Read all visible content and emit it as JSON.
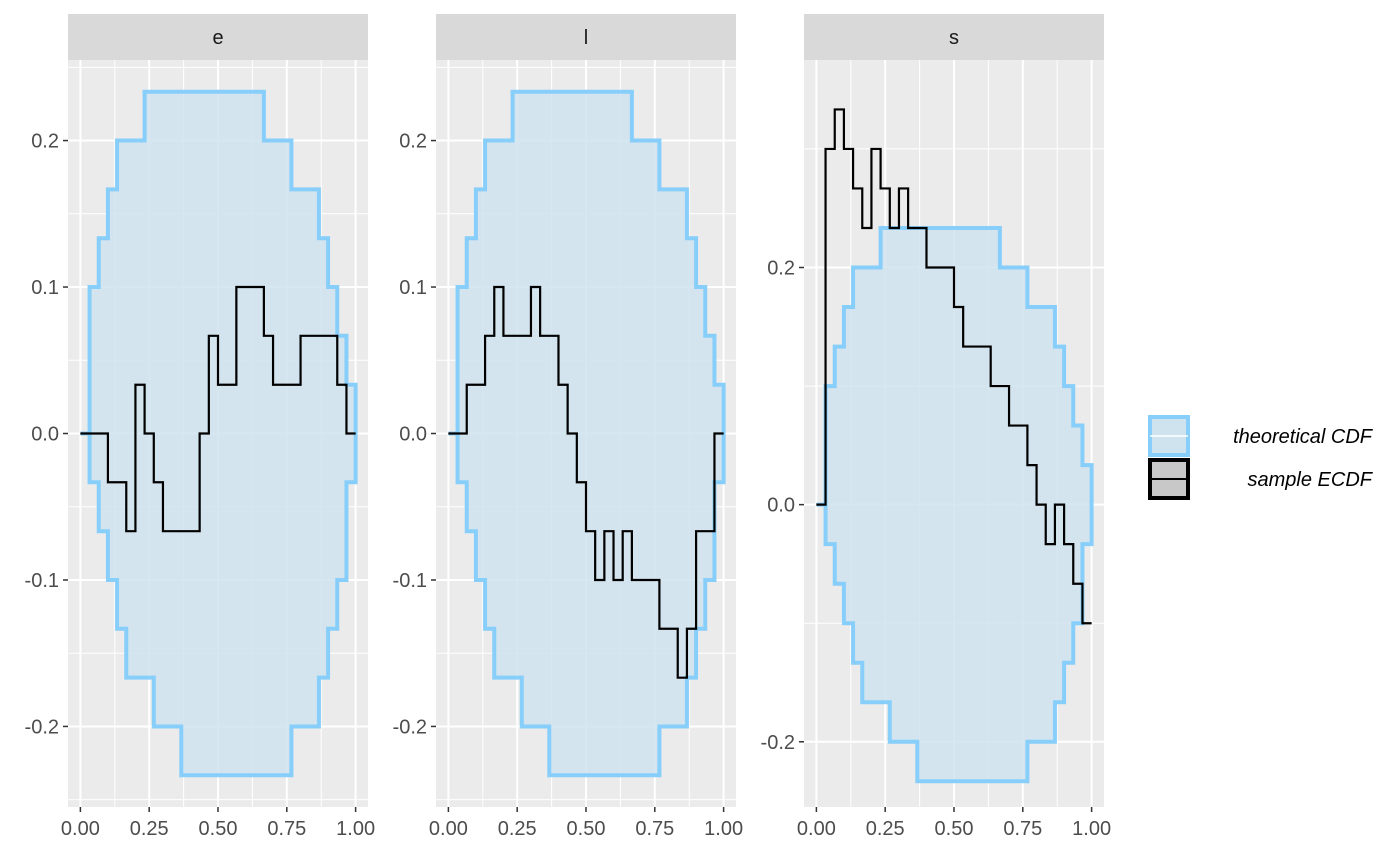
{
  "chart_data": {
    "type": "line",
    "title": "",
    "xlabel": "",
    "ylabel": "",
    "grid": true,
    "legend_position": "right",
    "colors": {
      "band_stroke": "#87cefa",
      "band_fill": "#cfe3ee",
      "ecdf": "#000000",
      "panel_bg": "#ebebeb",
      "strip_bg": "#d9d9d9"
    },
    "legend": [
      {
        "label": "theoretical CDF",
        "key": "band"
      },
      {
        "label": "sample ECDF",
        "key": "ecdf"
      }
    ],
    "band_x": [
      0,
      0.0333,
      0.0667,
      0.1,
      0.1333,
      0.1667,
      0.2333,
      0.2667,
      0.3667,
      0.6667,
      0.7667,
      0.8,
      0.8667,
      0.9,
      0.9333,
      0.9667,
      1
    ],
    "band_upper": [
      0,
      0.1,
      0.1333,
      0.1667,
      0.2,
      0.2,
      0.2333,
      0.2333,
      0.2333,
      0.2,
      0.1667,
      0.1667,
      0.1333,
      0.1,
      0.0667,
      0.0333,
      0
    ],
    "band_lower": [
      0,
      -0.0333,
      -0.0667,
      -0.1,
      -0.1333,
      -0.1667,
      -0.1667,
      -0.2,
      -0.2333,
      -0.2333,
      -0.2,
      -0.2,
      -0.1667,
      -0.1333,
      -0.1,
      -0.0333,
      0
    ],
    "panels": [
      {
        "name": "e",
        "ylim": [
          -0.255,
          0.255
        ],
        "y_ticks": [
          -0.2,
          -0.1,
          0.0,
          0.1,
          0.2
        ],
        "y_tick_labels": [
          "-0.2",
          "-0.1",
          "0.0",
          "0.1",
          "0.2"
        ],
        "x_ticks": [
          0,
          0.25,
          0.5,
          0.75,
          1
        ],
        "x_tick_labels": [
          "0.00",
          "0.25",
          "0.50",
          "0.75",
          "1.00"
        ],
        "ecdf_x": [
          0,
          0.1,
          0.1667,
          0.2,
          0.2333,
          0.2667,
          0.3,
          0.4333,
          0.4667,
          0.5,
          0.5667,
          0.6667,
          0.7,
          0.8,
          0.9333,
          0.9667,
          1
        ],
        "ecdf_y": [
          0,
          -0.0333,
          -0.0667,
          0.0333,
          0,
          -0.0333,
          -0.0667,
          0,
          0.0667,
          0.0333,
          0.1,
          0.0667,
          0.0333,
          0.0667,
          0.0333,
          0,
          0
        ]
      },
      {
        "name": "l",
        "ylim": [
          -0.255,
          0.255
        ],
        "y_ticks": [
          -0.2,
          -0.1,
          0.0,
          0.1,
          0.2
        ],
        "y_tick_labels": [
          "-0.2",
          "-0.1",
          "0.0",
          "0.1",
          "0.2"
        ],
        "x_ticks": [
          0,
          0.25,
          0.5,
          0.75,
          1
        ],
        "x_tick_labels": [
          "0.00",
          "0.25",
          "0.50",
          "0.75",
          "1.00"
        ],
        "ecdf_x": [
          0,
          0.0333,
          0.0667,
          0.1333,
          0.1667,
          0.2,
          0.3,
          0.3333,
          0.4,
          0.4333,
          0.4667,
          0.5,
          0.5333,
          0.5667,
          0.6,
          0.6333,
          0.6667,
          0.7667,
          0.8333,
          0.8667,
          0.9,
          0.9667,
          1
        ],
        "ecdf_y": [
          0,
          0,
          0.0333,
          0.0667,
          0.1,
          0.0667,
          0.1,
          0.0667,
          0.0333,
          0,
          -0.0333,
          -0.0667,
          -0.1,
          -0.0667,
          -0.1,
          -0.0667,
          -0.1,
          -0.1333,
          -0.1667,
          -0.1333,
          -0.0667,
          0,
          0
        ]
      },
      {
        "name": "s",
        "ylim": [
          -0.255,
          0.375
        ],
        "y_ticks": [
          -0.2,
          0.0,
          0.2
        ],
        "y_tick_labels": [
          "-0.2",
          "0.0",
          "0.2"
        ],
        "x_ticks": [
          0,
          0.25,
          0.5,
          0.75,
          1
        ],
        "x_tick_labels": [
          "0.00",
          "0.25",
          "0.50",
          "0.75",
          "1.00"
        ],
        "ecdf_x": [
          0,
          0.0333,
          0.0667,
          0.1,
          0.1333,
          0.1667,
          0.2,
          0.2333,
          0.2667,
          0.3,
          0.3333,
          0.4,
          0.5,
          0.5333,
          0.6333,
          0.7,
          0.7667,
          0.8,
          0.8333,
          0.8667,
          0.9,
          0.9333,
          0.9667,
          1
        ],
        "ecdf_y": [
          0,
          0.3,
          0.3333,
          0.3,
          0.2667,
          0.2333,
          0.3,
          0.2667,
          0.2333,
          0.2667,
          0.2333,
          0.2,
          0.1667,
          0.1333,
          0.1,
          0.0667,
          0.0333,
          0,
          -0.0333,
          0,
          -0.0333,
          -0.0667,
          -0.1,
          -0.1
        ]
      }
    ]
  }
}
